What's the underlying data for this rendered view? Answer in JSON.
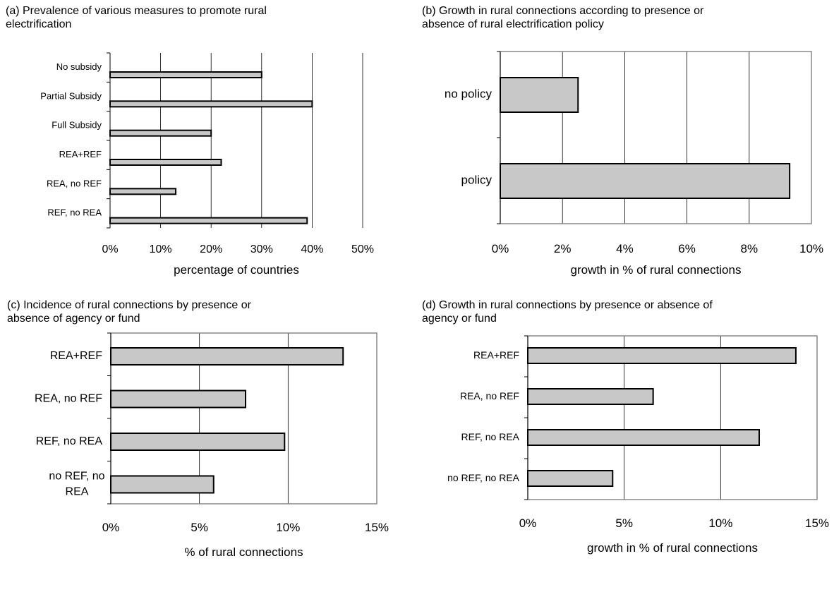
{
  "chart_data": [
    {
      "type": "bar",
      "orientation": "horizontal",
      "title": "(a) Prevalence of various measures to promote rural\nelectrification",
      "categories": [
        "No subsidy",
        "Partial Subsidy",
        "Full Subsidy",
        "REA+REF",
        "REA, no REF",
        "REF, no REA"
      ],
      "values": [
        30,
        40,
        20,
        22,
        13,
        39
      ],
      "xlabel": "percentage of countries",
      "xlim": [
        0,
        50
      ],
      "xticks": [
        "0%",
        "10%",
        "20%",
        "30%",
        "40%",
        "50%"
      ],
      "grid": "vertical",
      "bar_color": "#c8c8c8"
    },
    {
      "type": "bar",
      "orientation": "horizontal",
      "title": "(b) Growth in rural connections according to presence or\nabsence of rural electrification policy",
      "categories": [
        "no policy",
        "policy"
      ],
      "values": [
        2.5,
        9.3
      ],
      "xlabel": "growth in % of rural connections",
      "xlim": [
        0,
        10
      ],
      "xticks": [
        "0%",
        "2%",
        "4%",
        "6%",
        "8%",
        "10%"
      ],
      "grid": "vertical",
      "bar_color": "#c8c8c8"
    },
    {
      "type": "bar",
      "orientation": "horizontal",
      "title": "(c) Incidence of rural connections by presence or\nabsence of agency or fund",
      "categories": [
        "REA+REF",
        "REA, no REF",
        "REF, no REA",
        "no REF, no\nREA"
      ],
      "values": [
        13.1,
        7.6,
        9.8,
        5.8
      ],
      "xlabel": "% of rural connections",
      "xlim": [
        0,
        15
      ],
      "xticks": [
        "0%",
        "5%",
        "10%",
        "15%"
      ],
      "grid": "vertical",
      "bar_color": "#c8c8c8"
    },
    {
      "type": "bar",
      "orientation": "horizontal",
      "title": "(d) Growth in rural connections by presence or absence of\nagency or fund",
      "categories": [
        "REA+REF",
        "REA, no REF",
        "REF, no REA",
        "no REF, no REA"
      ],
      "values": [
        13.9,
        6.5,
        12.0,
        4.4
      ],
      "xlabel": "growth in % of rural connections",
      "xlim": [
        0,
        15
      ],
      "xticks": [
        "0%",
        "5%",
        "10%",
        "15%"
      ],
      "grid": "vertical",
      "bar_color": "#c8c8c8"
    }
  ]
}
